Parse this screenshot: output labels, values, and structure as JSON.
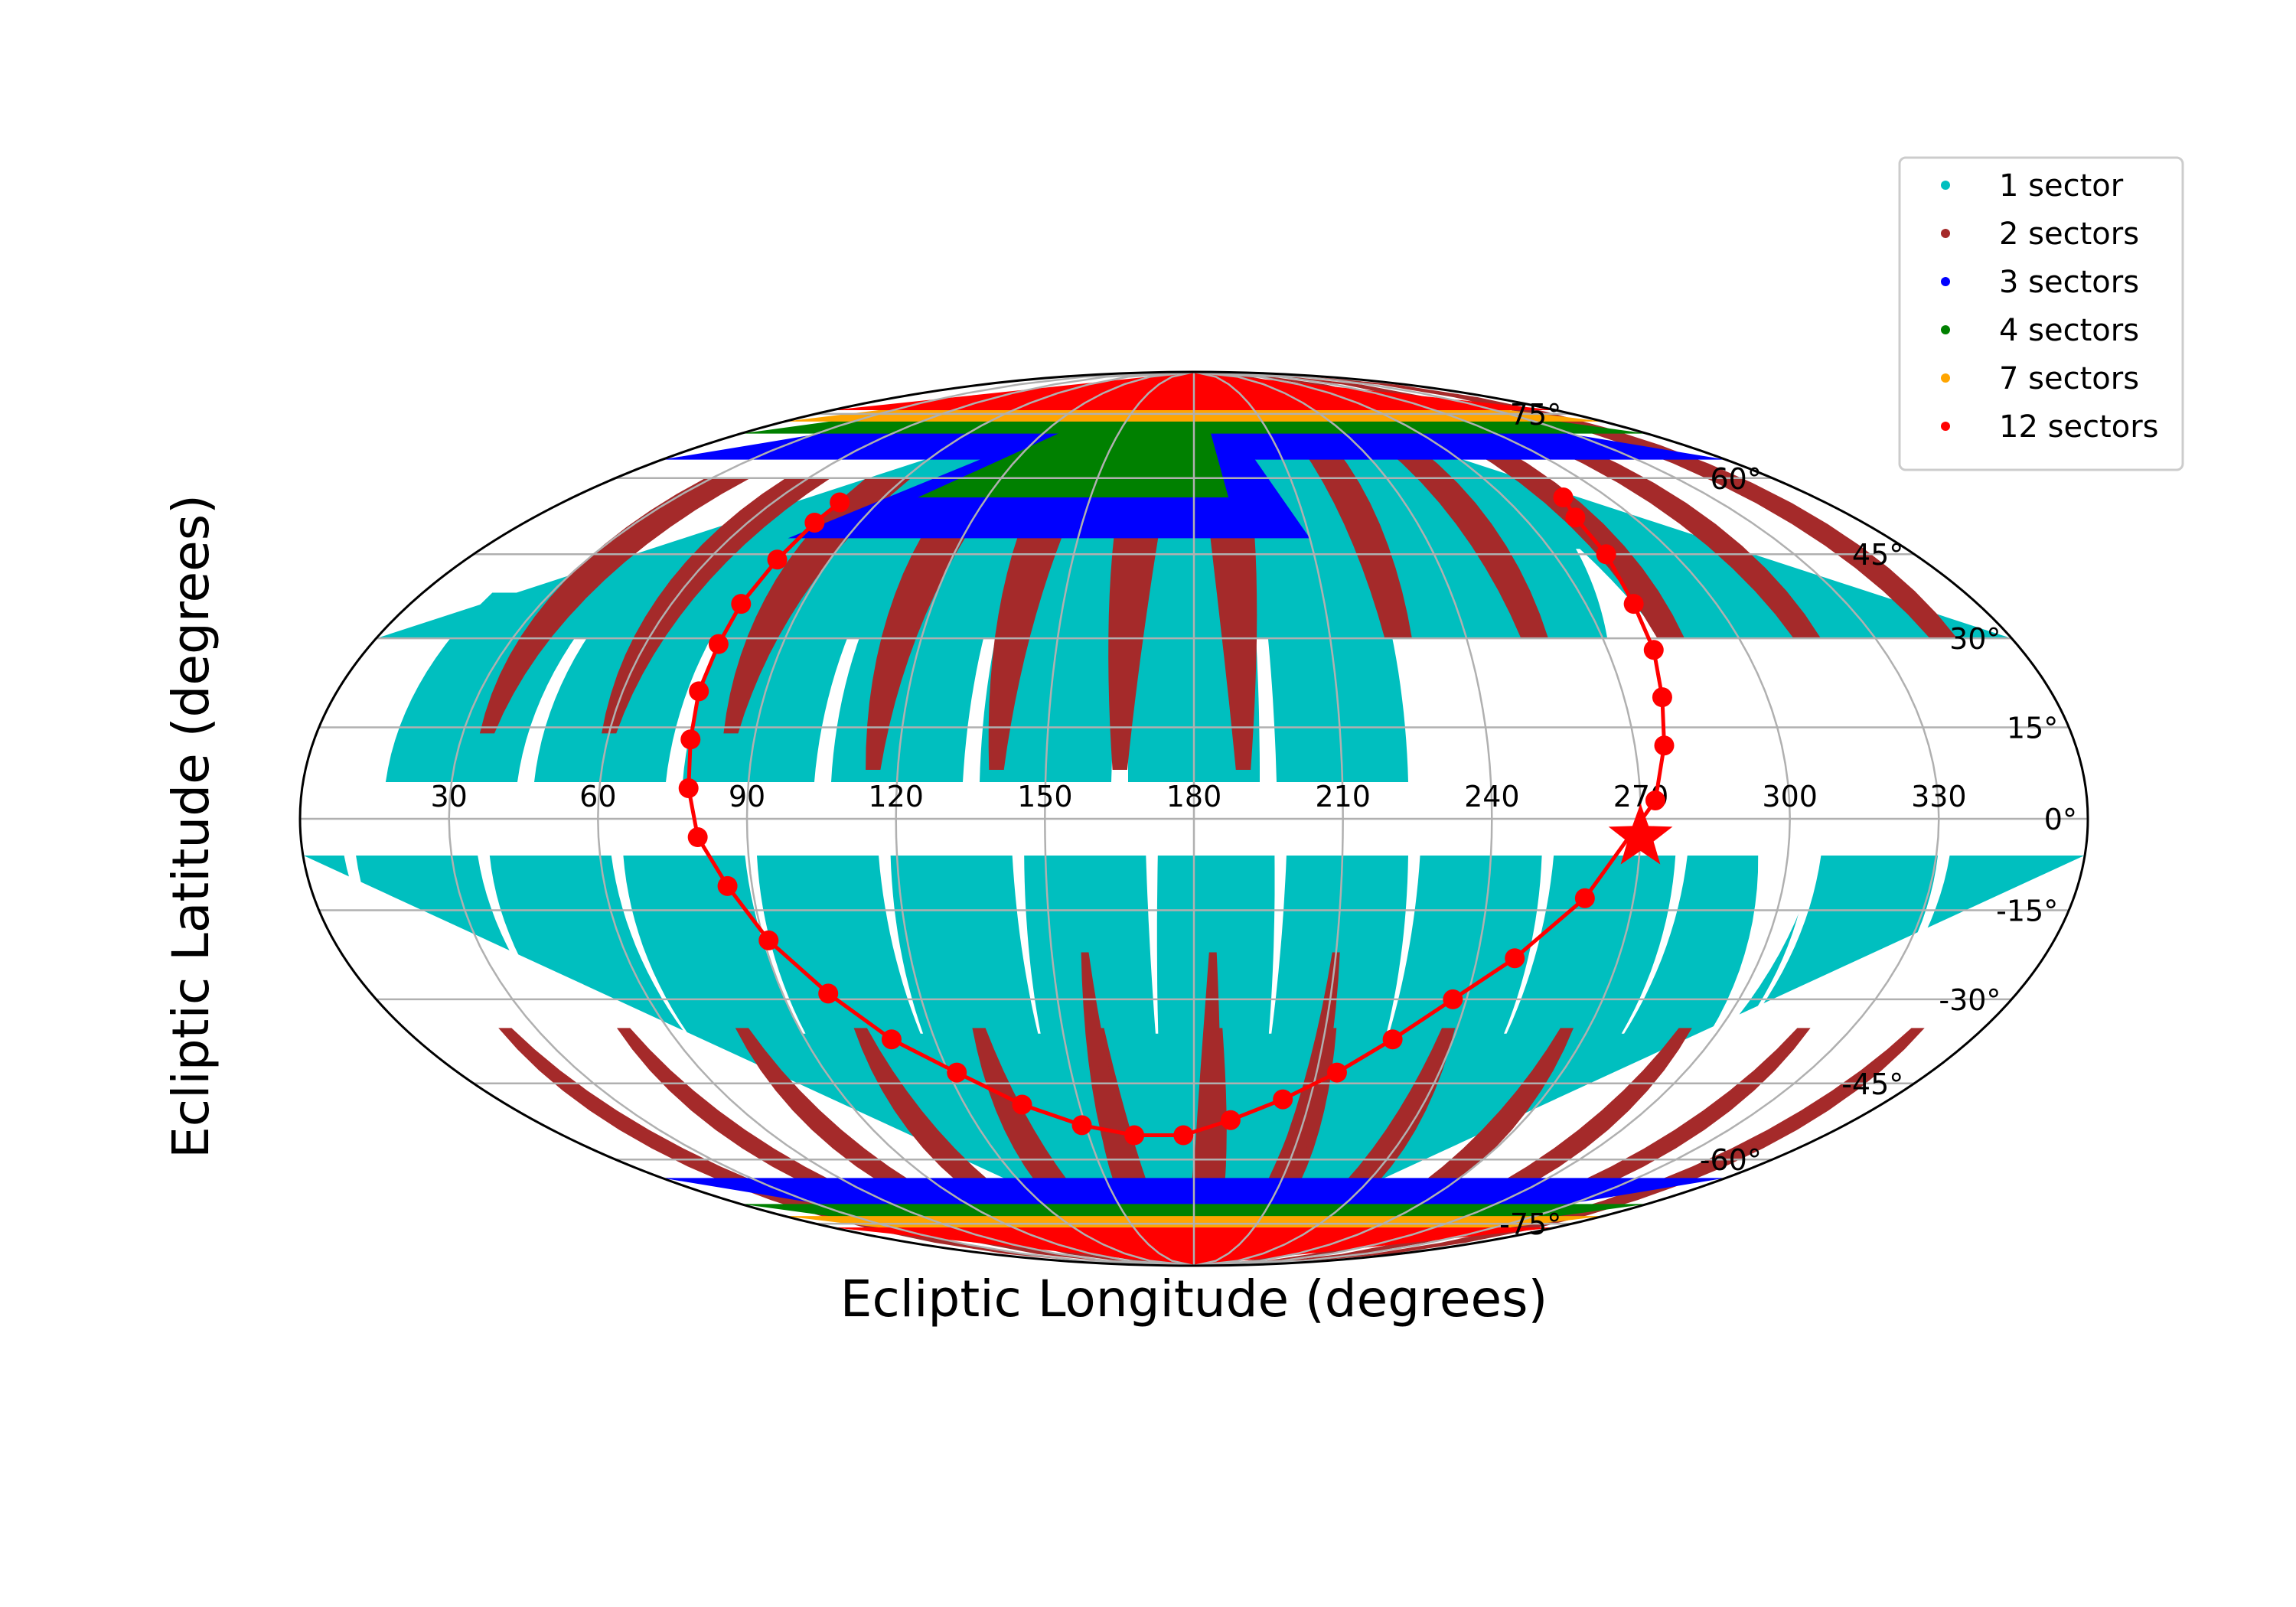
{
  "chart_data": {
    "type": "scatter",
    "projection": "mollweide",
    "xlabel": "Ecliptic Longitude (degrees)",
    "ylabel": "Ecliptic Latitude (degrees)",
    "x_ticks": [
      "330",
      "300",
      "270",
      "240",
      "210",
      "180",
      "150",
      "120",
      "90",
      "60",
      "30"
    ],
    "x_tick_values": [
      330,
      300,
      270,
      240,
      210,
      180,
      150,
      120,
      90,
      60,
      30
    ],
    "y_ticks": [
      "75°",
      "60°",
      "45°",
      "30°",
      "15°",
      "0°",
      "-15°",
      "-30°",
      "-45°",
      "-60°",
      "-75°"
    ],
    "y_tick_values": [
      75,
      60,
      45,
      30,
      15,
      0,
      -15,
      -30,
      -45,
      -60,
      -75
    ],
    "grid": true,
    "legend": {
      "placement": "top-right",
      "entries": [
        {
          "label": "1 sector",
          "color": "#00bfbf"
        },
        {
          "label": "2 sectors",
          "color": "#a52a2a"
        },
        {
          "label": "3 sectors",
          "color": "#0000ff"
        },
        {
          "label": "4 sectors",
          "color": "#008000"
        },
        {
          "label": "7 sectors",
          "color": "#ffa500"
        },
        {
          "label": "12 sectors",
          "color": "#ff0000"
        }
      ]
    },
    "coverage": {
      "colors": {
        "c1": "#00bfbf",
        "c2": "#a52a2a",
        "c3": "#0000ff",
        "c4": "#008000",
        "c7": "#ffa500",
        "c12": "#ff0000"
      },
      "south_band_lat": [
        -90,
        -6
      ],
      "north_band_lat": [
        6,
        90
      ],
      "south_sector_lons": [
        345,
        319,
        292,
        265,
        238,
        211,
        185,
        158,
        131,
        104,
        77,
        50,
        23
      ],
      "north_sector_lons_full": [
        210,
        180,
        150,
        120,
        90,
        60,
        30
      ],
      "north_sector_lons_high": [
        345,
        315,
        285,
        255,
        225
      ]
    },
    "trajectory": {
      "color": "#ff0000",
      "points": [
        [
          287,
          56
        ],
        [
          284,
          52
        ],
        [
          283,
          45
        ],
        [
          281,
          36
        ],
        [
          280,
          28
        ],
        [
          278,
          20
        ],
        [
          276,
          12
        ],
        [
          273,
          3
        ],
        [
          260,
          -13
        ],
        [
          248,
          -23
        ],
        [
          237,
          -30
        ],
        [
          226,
          -37
        ],
        [
          215,
          -43
        ],
        [
          203,
          -48
        ],
        [
          190,
          -52
        ],
        [
          177,
          -55
        ],
        [
          163,
          -55
        ],
        [
          149,
          -53
        ],
        [
          135,
          -49
        ],
        [
          122,
          -43
        ],
        [
          110,
          -37
        ],
        [
          100,
          -29
        ],
        [
          91,
          -20
        ],
        [
          85,
          -11
        ],
        [
          80,
          -3
        ],
        [
          78,
          5
        ],
        [
          77,
          13
        ],
        [
          76,
          21
        ],
        [
          76,
          29
        ],
        [
          76,
          36
        ],
        [
          77,
          44
        ],
        [
          78,
          51
        ],
        [
          79,
          55
        ]
      ],
      "marker": {
        "lon": 270,
        "lat": -3,
        "symbol": "star"
      }
    }
  }
}
